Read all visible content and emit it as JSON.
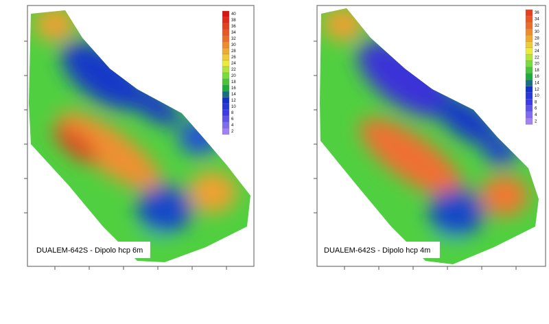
{
  "maps": [
    {
      "caption": "DUALEM-642S - Dipolo hcp 6m",
      "colorbar_ticks": [
        40,
        38,
        36,
        34,
        32,
        30,
        28,
        26,
        24,
        22,
        20,
        18,
        16,
        14,
        12,
        10,
        8,
        6,
        4,
        2
      ]
    },
    {
      "caption": "DUALEM-642S - Dipolo hcp 4m",
      "colorbar_ticks": [
        36,
        34,
        32,
        30,
        28,
        26,
        24,
        22,
        20,
        18,
        16,
        14,
        12,
        10,
        8,
        6,
        4,
        2
      ]
    }
  ]
}
